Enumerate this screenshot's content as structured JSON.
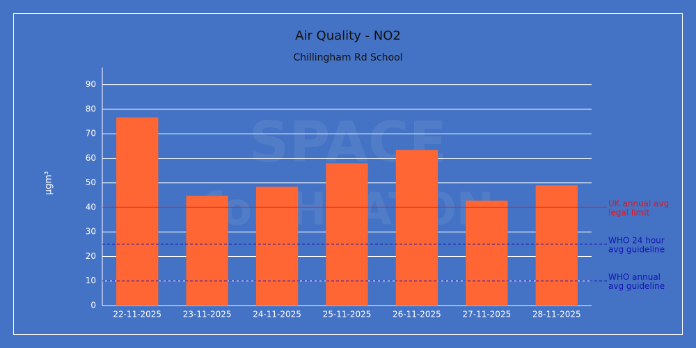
{
  "chart_data": {
    "type": "bar",
    "title": "Air Quality - NO2",
    "subtitle": "Chillingham Rd School",
    "y_label": "µgm³",
    "watermark": [
      "SPACE",
      "for HEATON"
    ],
    "categories": [
      "22-11-2025",
      "23-11-2025",
      "24-11-2025",
      "25-11-2025",
      "26-11-2025",
      "27-11-2025",
      "28-11-2025"
    ],
    "values": [
      76.7,
      44.7,
      48.4,
      58.0,
      63.4,
      42.7,
      49.0
    ],
    "color": "#ff6633",
    "ylim": [
      0,
      97
    ],
    "yticks": [
      0,
      10,
      20,
      30,
      40,
      50,
      60,
      70,
      80,
      90
    ],
    "grid": true,
    "reference_lines": [
      {
        "value": 40,
        "label": [
          "UK annual avg",
          "legal limit"
        ],
        "color": "#e8141e",
        "style": "solid"
      },
      {
        "value": 25,
        "label": [
          "WHO 24 hour",
          "avg guideline"
        ],
        "color": "#1414b4",
        "style": "dashed"
      },
      {
        "value": 10,
        "label": [
          "WHO annual",
          "avg guideline"
        ],
        "color": "#1414b4",
        "style": "dashed"
      }
    ]
  }
}
